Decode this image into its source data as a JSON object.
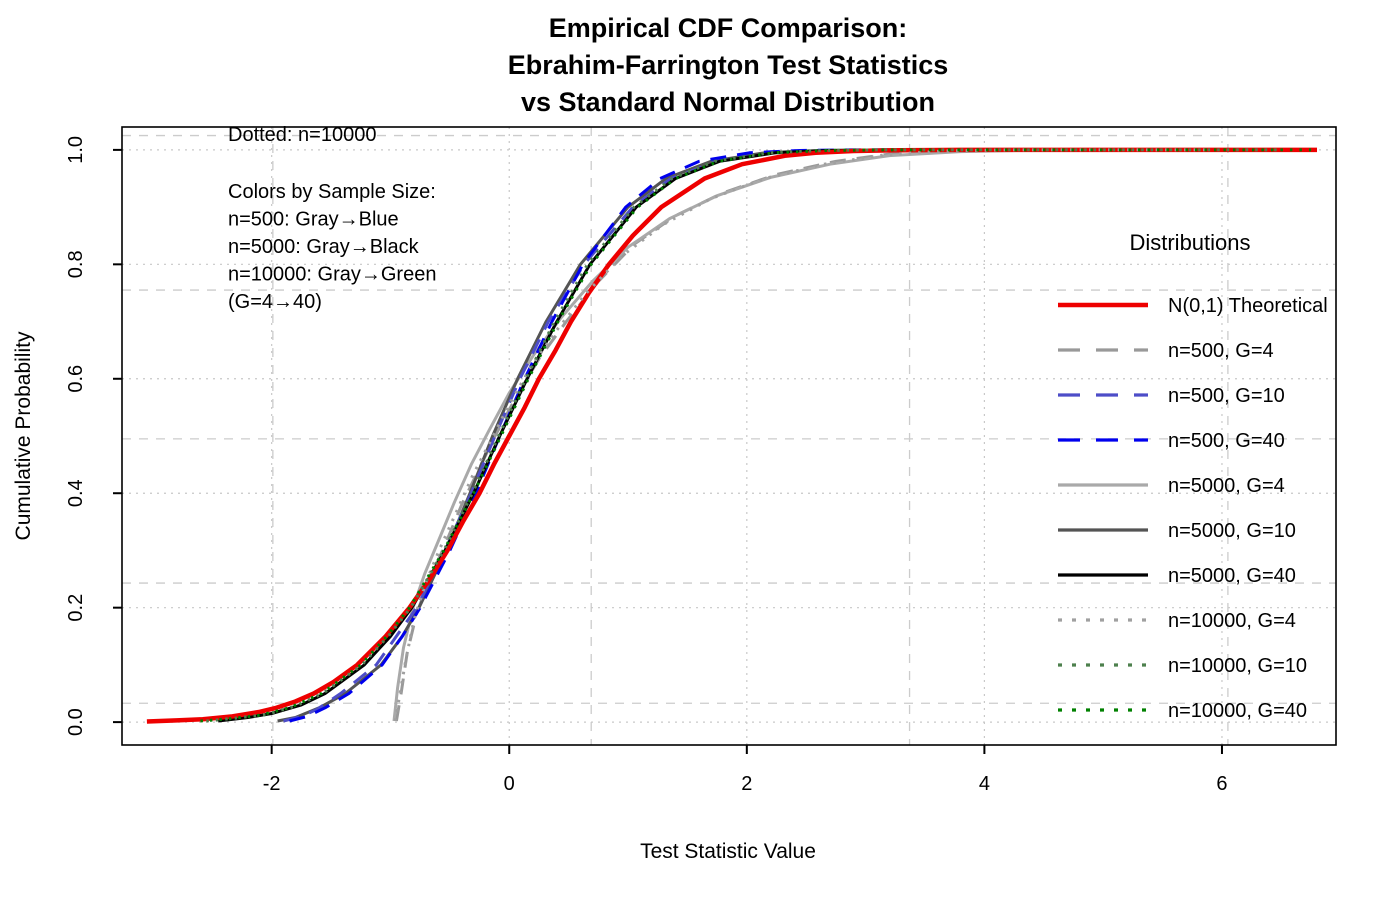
{
  "title": {
    "line1": "Empirical CDF Comparison:",
    "line2": "Ebrahim-Farrington Test Statistics",
    "line3": "vs Standard Normal Distribution"
  },
  "axes": {
    "x_label": "Test Statistic Value",
    "y_label": "Cumulative Probability",
    "x_ticks": [
      {
        "v": -2,
        "label": "-2"
      },
      {
        "v": 0,
        "label": "0"
      },
      {
        "v": 2,
        "label": "2"
      },
      {
        "v": 4,
        "label": "4"
      },
      {
        "v": 6,
        "label": "6"
      }
    ],
    "y_ticks": [
      {
        "p": 0.0,
        "label": "0.0"
      },
      {
        "p": 0.2,
        "label": "0.2"
      },
      {
        "p": 0.4,
        "label": "0.4"
      },
      {
        "p": 0.6,
        "label": "0.6"
      },
      {
        "p": 0.8,
        "label": "0.8"
      },
      {
        "p": 1.0,
        "label": "1.0"
      }
    ]
  },
  "annotations": {
    "dotted_note": "Dotted: n=10000",
    "color_note": [
      "Colors by Sample Size:",
      "n=500: Gray→Blue",
      "n=5000: Gray→Black",
      "n=10000: Gray→Green",
      "(G=4→40)"
    ]
  },
  "legend": {
    "title": "Distributions",
    "items": [
      {
        "label": "N(0,1) Theoretical",
        "series": "theoretical"
      },
      {
        "label": "n=500, G=4",
        "series": "n500_G4"
      },
      {
        "label": "n=500, G=10",
        "series": "n500_G10"
      },
      {
        "label": "n=500, G=40",
        "series": "n500_G40"
      },
      {
        "label": "n=5000, G=4",
        "series": "n5000_G4"
      },
      {
        "label": "n=5000, G=10",
        "series": "n5000_G10"
      },
      {
        "label": "n=5000, G=40",
        "series": "n5000_G40"
      },
      {
        "label": "n=10000, G=4",
        "series": "n10000_G4"
      },
      {
        "label": "n=10000, G=10",
        "series": "n10000_G10"
      },
      {
        "label": "n=10000, G=40",
        "series": "n10000_G40"
      }
    ]
  },
  "chart_data": {
    "type": "line",
    "subtype": "ecdf-comparison",
    "xlabel": "Test Statistic Value",
    "ylabel": "Cumulative Probability",
    "xlim": [
      -3.26,
      6.96
    ],
    "ylim": [
      -0.04,
      1.04
    ],
    "grid": {
      "on": true,
      "dotted_x_at_ticks": [
        -2,
        0,
        2,
        4,
        6
      ],
      "dotted_y_at_ticks": [
        0.0,
        0.2,
        0.4,
        0.6,
        0.8,
        1.0
      ],
      "dashed_x": [
        -1.99,
        0.69,
        3.37,
        6.05
      ],
      "dashed_y": [
        1.025,
        0.755,
        0.495,
        0.243,
        0.033
      ],
      "color_dotted": "#c8c8c8",
      "color_dashed": "#cccccc"
    },
    "legend_position": "right-inside-no-box",
    "colors": {
      "theoretical": "#ee0000",
      "n500_G4": "#999999",
      "n500_G10": "#4d4dc8",
      "n500_G40": "#0000ee",
      "n5000_G4": "#a9a9a9",
      "n5000_G10": "#545454",
      "n5000_G40": "#000000",
      "n10000_G4": "#a0a0a0",
      "n10000_G10": "#4d804d",
      "n10000_G40": "#008000"
    },
    "series": [
      {
        "name": "n500_G4",
        "color": "#999999",
        "style": "dashed",
        "width": 3,
        "points": [
          [
            -0.95,
            0.002
          ],
          [
            -0.91,
            0.05
          ],
          [
            -0.86,
            0.12
          ],
          [
            -0.78,
            0.19
          ],
          [
            -0.67,
            0.25
          ],
          [
            -0.54,
            0.31
          ],
          [
            -0.4,
            0.38
          ],
          [
            -0.26,
            0.44
          ],
          [
            -0.12,
            0.5
          ],
          [
            0.05,
            0.565
          ],
          [
            0.25,
            0.635
          ],
          [
            0.48,
            0.7
          ],
          [
            0.75,
            0.77
          ],
          [
            1.05,
            0.835
          ],
          [
            1.4,
            0.885
          ],
          [
            1.8,
            0.925
          ],
          [
            2.25,
            0.957
          ],
          [
            2.75,
            0.98
          ],
          [
            3.25,
            0.994
          ],
          [
            3.7,
            0.999
          ],
          [
            4.3,
            1.0
          ],
          [
            5.8,
            1.0
          ]
        ]
      },
      {
        "name": "n5000_G4",
        "color": "#a9a9a9",
        "style": "solid",
        "width": 3,
        "points": [
          [
            -0.97,
            0.002
          ],
          [
            -0.94,
            0.06
          ],
          [
            -0.89,
            0.13
          ],
          [
            -0.81,
            0.2
          ],
          [
            -0.71,
            0.26
          ],
          [
            -0.59,
            0.32
          ],
          [
            -0.46,
            0.385
          ],
          [
            -0.32,
            0.45
          ],
          [
            -0.17,
            0.51
          ],
          [
            0.0,
            0.575
          ],
          [
            0.2,
            0.64
          ],
          [
            0.43,
            0.705
          ],
          [
            0.7,
            0.77
          ],
          [
            1.0,
            0.83
          ],
          [
            1.35,
            0.88
          ],
          [
            1.75,
            0.92
          ],
          [
            2.2,
            0.952
          ],
          [
            2.7,
            0.975
          ],
          [
            3.2,
            0.99
          ],
          [
            3.8,
            0.997
          ],
          [
            4.5,
            1.0
          ],
          [
            6.0,
            1.0
          ]
        ]
      },
      {
        "name": "n5000_G10",
        "color": "#545454",
        "style": "solid",
        "width": 3,
        "points": [
          [
            -1.95,
            0.002
          ],
          [
            -1.8,
            0.008
          ],
          [
            -1.6,
            0.025
          ],
          [
            -1.38,
            0.05
          ],
          [
            -1.08,
            0.1
          ],
          [
            -0.9,
            0.15
          ],
          [
            -0.76,
            0.2
          ],
          [
            -0.53,
            0.3
          ],
          [
            -0.33,
            0.4
          ],
          [
            -0.14,
            0.5
          ],
          [
            0.07,
            0.6
          ],
          [
            0.31,
            0.7
          ],
          [
            0.6,
            0.8
          ],
          [
            1.0,
            0.9
          ],
          [
            1.32,
            0.95
          ],
          [
            1.7,
            0.98
          ],
          [
            2.15,
            0.995
          ],
          [
            2.6,
            0.999
          ],
          [
            3.1,
            1.0
          ],
          [
            6.1,
            1.0
          ]
        ]
      },
      {
        "name": "n500_G10",
        "color": "#4d4dc8",
        "style": "dashed",
        "width": 3,
        "points": [
          [
            -1.9,
            0.002
          ],
          [
            -1.75,
            0.01
          ],
          [
            -1.62,
            0.022
          ],
          [
            -1.42,
            0.05
          ],
          [
            -1.12,
            0.1
          ],
          [
            -0.95,
            0.15
          ],
          [
            -0.78,
            0.2
          ],
          [
            -0.54,
            0.3
          ],
          [
            -0.32,
            0.4
          ],
          [
            -0.12,
            0.5
          ],
          [
            0.09,
            0.6
          ],
          [
            0.33,
            0.7
          ],
          [
            0.63,
            0.8
          ],
          [
            1.04,
            0.9
          ],
          [
            1.36,
            0.95
          ],
          [
            1.75,
            0.98
          ],
          [
            2.22,
            0.995
          ],
          [
            2.7,
            0.999
          ],
          [
            3.2,
            1.0
          ],
          [
            6.0,
            1.0
          ]
        ]
      },
      {
        "name": "n500_G40",
        "color": "#0000ee",
        "style": "dashed",
        "width": 3,
        "points": [
          [
            -1.85,
            0.002
          ],
          [
            -1.7,
            0.01
          ],
          [
            -1.55,
            0.025
          ],
          [
            -1.35,
            0.05
          ],
          [
            -1.07,
            0.1
          ],
          [
            -0.9,
            0.15
          ],
          [
            -0.75,
            0.2
          ],
          [
            -0.5,
            0.3
          ],
          [
            -0.28,
            0.4
          ],
          [
            -0.08,
            0.5
          ],
          [
            0.13,
            0.6
          ],
          [
            0.36,
            0.7
          ],
          [
            0.62,
            0.8
          ],
          [
            0.98,
            0.9
          ],
          [
            1.27,
            0.95
          ],
          [
            1.6,
            0.98
          ],
          [
            2.02,
            0.995
          ],
          [
            2.45,
            0.999
          ],
          [
            2.9,
            1.0
          ],
          [
            6.3,
            1.0
          ]
        ]
      },
      {
        "name": "n5000_G40",
        "color": "#000000",
        "style": "solid",
        "width": 3,
        "points": [
          [
            -2.45,
            0.002
          ],
          [
            -2.2,
            0.008
          ],
          [
            -2.0,
            0.015
          ],
          [
            -1.75,
            0.03
          ],
          [
            -1.55,
            0.05
          ],
          [
            -1.22,
            0.1
          ],
          [
            -1.0,
            0.15
          ],
          [
            -0.82,
            0.2
          ],
          [
            -0.54,
            0.3
          ],
          [
            -0.3,
            0.4
          ],
          [
            -0.08,
            0.5
          ],
          [
            0.15,
            0.6
          ],
          [
            0.4,
            0.7
          ],
          [
            0.68,
            0.8
          ],
          [
            1.07,
            0.9
          ],
          [
            1.4,
            0.95
          ],
          [
            1.77,
            0.98
          ],
          [
            2.24,
            0.995
          ],
          [
            2.7,
            0.999
          ],
          [
            3.2,
            1.0
          ],
          [
            6.3,
            1.0
          ]
        ]
      },
      {
        "name": "theoretical",
        "color": "#ee0000",
        "style": "solid",
        "width": 4.5,
        "points": [
          [
            -3.05,
            0.001
          ],
          [
            -2.8,
            0.003
          ],
          [
            -2.58,
            0.005
          ],
          [
            -2.33,
            0.01
          ],
          [
            -2.1,
            0.018
          ],
          [
            -1.96,
            0.025
          ],
          [
            -1.8,
            0.036
          ],
          [
            -1.645,
            0.05
          ],
          [
            -1.48,
            0.07
          ],
          [
            -1.28,
            0.1
          ],
          [
            -1.04,
            0.15
          ],
          [
            -0.84,
            0.2
          ],
          [
            -0.67,
            0.25
          ],
          [
            -0.52,
            0.3
          ],
          [
            -0.39,
            0.35
          ],
          [
            -0.25,
            0.4
          ],
          [
            -0.13,
            0.45
          ],
          [
            0.0,
            0.5
          ],
          [
            0.13,
            0.55
          ],
          [
            0.25,
            0.6
          ],
          [
            0.39,
            0.65
          ],
          [
            0.52,
            0.7
          ],
          [
            0.67,
            0.75
          ],
          [
            0.84,
            0.8
          ],
          [
            1.04,
            0.85
          ],
          [
            1.28,
            0.9
          ],
          [
            1.645,
            0.95
          ],
          [
            1.96,
            0.975
          ],
          [
            2.33,
            0.99
          ],
          [
            2.58,
            0.995
          ],
          [
            2.9,
            0.998
          ],
          [
            3.3,
            0.9995
          ],
          [
            3.8,
            1.0
          ],
          [
            6.8,
            1.0
          ]
        ]
      },
      {
        "name": "n10000_G4",
        "color": "#a0a0a0",
        "style": "dotted",
        "width": 3,
        "points": [
          [
            -0.96,
            0.002
          ],
          [
            -0.92,
            0.05
          ],
          [
            -0.87,
            0.11
          ],
          [
            -0.8,
            0.18
          ],
          [
            -0.7,
            0.245
          ],
          [
            -0.58,
            0.305
          ],
          [
            -0.45,
            0.365
          ],
          [
            -0.31,
            0.43
          ],
          [
            -0.16,
            0.49
          ],
          [
            0.0,
            0.555
          ],
          [
            0.18,
            0.62
          ],
          [
            0.4,
            0.685
          ],
          [
            0.65,
            0.75
          ],
          [
            0.95,
            0.815
          ],
          [
            1.3,
            0.87
          ],
          [
            1.7,
            0.915
          ],
          [
            2.15,
            0.95
          ],
          [
            2.65,
            0.975
          ],
          [
            3.15,
            0.991
          ],
          [
            3.65,
            0.998
          ],
          [
            4.2,
            1.0
          ],
          [
            5.9,
            1.0
          ]
        ]
      },
      {
        "name": "n10000_G10",
        "color": "#4d804d",
        "style": "dotted",
        "width": 3,
        "points": [
          [
            -2.55,
            0.002
          ],
          [
            -2.3,
            0.007
          ],
          [
            -2.05,
            0.013
          ],
          [
            -1.8,
            0.028
          ],
          [
            -1.57,
            0.05
          ],
          [
            -1.24,
            0.1
          ],
          [
            -1.02,
            0.15
          ],
          [
            -0.83,
            0.2
          ],
          [
            -0.55,
            0.3
          ],
          [
            -0.31,
            0.4
          ],
          [
            -0.09,
            0.5
          ],
          [
            0.14,
            0.6
          ],
          [
            0.38,
            0.7
          ],
          [
            0.66,
            0.8
          ],
          [
            1.05,
            0.9
          ],
          [
            1.37,
            0.95
          ],
          [
            1.73,
            0.98
          ],
          [
            2.19,
            0.995
          ],
          [
            2.64,
            0.999
          ],
          [
            3.1,
            1.0
          ],
          [
            6.5,
            1.0
          ]
        ]
      },
      {
        "name": "n10000_G40",
        "color": "#008000",
        "style": "dotted",
        "width": 3,
        "points": [
          [
            -2.6,
            0.002
          ],
          [
            -2.35,
            0.006
          ],
          [
            -2.1,
            0.012
          ],
          [
            -1.85,
            0.025
          ],
          [
            -1.58,
            0.05
          ],
          [
            -1.25,
            0.1
          ],
          [
            -1.03,
            0.15
          ],
          [
            -0.84,
            0.2
          ],
          [
            -0.55,
            0.3
          ],
          [
            -0.3,
            0.4
          ],
          [
            -0.07,
            0.5
          ],
          [
            0.16,
            0.6
          ],
          [
            0.41,
            0.7
          ],
          [
            0.69,
            0.8
          ],
          [
            1.08,
            0.9
          ],
          [
            1.4,
            0.95
          ],
          [
            1.76,
            0.98
          ],
          [
            2.22,
            0.995
          ],
          [
            2.67,
            0.999
          ],
          [
            3.15,
            1.0
          ],
          [
            6.75,
            1.0
          ]
        ]
      }
    ]
  }
}
